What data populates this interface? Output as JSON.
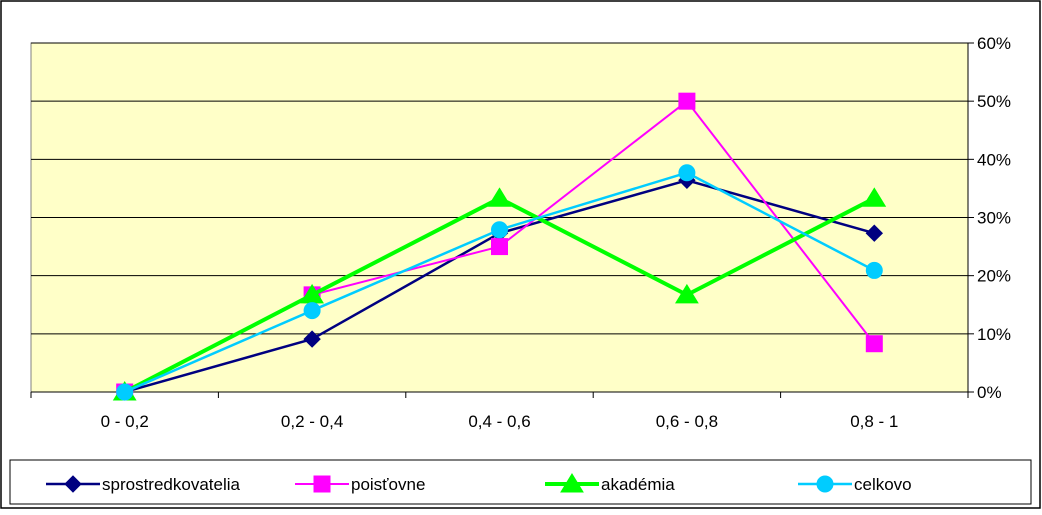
{
  "chart_data": {
    "type": "line",
    "categories": [
      "0 - 0,2",
      "0,2 - 0,4",
      "0,4 - 0,6",
      "0,6 - 0,8",
      "0,8 - 1"
    ],
    "ylim": [
      0,
      60
    ],
    "yticks": [
      0,
      10,
      20,
      30,
      40,
      50,
      60
    ],
    "ytick_labels": [
      "0%",
      "10%",
      "20%",
      "30%",
      "40%",
      "50%",
      "60%"
    ],
    "y_axis_side": "right",
    "grid": true,
    "plot_background": "#FFFFC8",
    "legend_position": "bottom",
    "series": [
      {
        "name": "sprostredkovatelia",
        "values": [
          0,
          9.1,
          27.3,
          36.4,
          27.3
        ],
        "color": "#000080",
        "marker": "diamond"
      },
      {
        "name": "poisťovne",
        "values": [
          0,
          16.7,
          25.0,
          50.0,
          8.3
        ],
        "color": "#FF00FF",
        "marker": "square"
      },
      {
        "name": "akadémia",
        "values": [
          0,
          16.7,
          33.3,
          16.7,
          33.3
        ],
        "color": "#00FF00",
        "marker": "triangle"
      },
      {
        "name": "celkovo",
        "values": [
          0,
          14.0,
          27.9,
          37.7,
          20.9
        ],
        "color": "#00CCFF",
        "marker": "circle"
      }
    ],
    "title": "",
    "xlabel": "",
    "ylabel": ""
  }
}
